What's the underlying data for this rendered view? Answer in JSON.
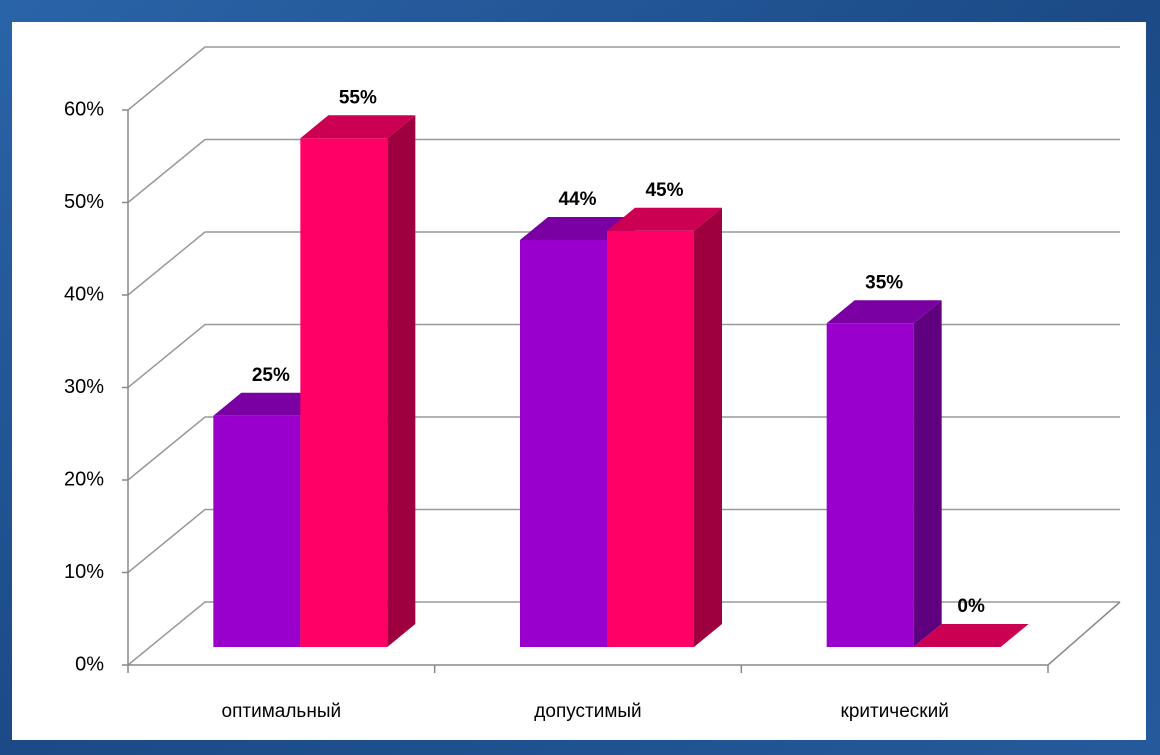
{
  "chart_data": {
    "type": "bar3d",
    "categories": [
      "оптимальный",
      "допустимый",
      "критический"
    ],
    "series": [
      {
        "color": "#9900cc",
        "values": [
          25,
          44,
          35
        ],
        "value_labels": [
          "25%",
          "44%",
          "35%"
        ]
      },
      {
        "color": "#ff0066",
        "values": [
          55,
          45,
          0
        ],
        "value_labels": [
          "55%",
          "45%",
          "0%"
        ]
      }
    ],
    "ylim": [
      0,
      60
    ],
    "yticks": [
      {
        "value": 0,
        "label": "0%"
      },
      {
        "value": 10,
        "label": "10%"
      },
      {
        "value": 20,
        "label": "20%"
      },
      {
        "value": 30,
        "label": "30%"
      },
      {
        "value": 40,
        "label": "40%"
      },
      {
        "value": 50,
        "label": "50%"
      },
      {
        "value": 60,
        "label": "60%"
      }
    ],
    "grid": true
  }
}
